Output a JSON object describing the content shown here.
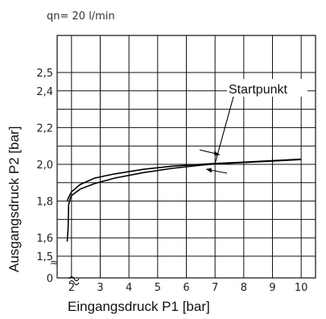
{
  "chart_data": {
    "type": "line",
    "annotation": "qn= 20 l/min",
    "xlabel": "Eingangsdruck P1 [bar]",
    "ylabel": "Ausgangsdruck P2 [bar]",
    "x_ticks": [
      "2",
      "3",
      "4",
      "5",
      "6",
      "7",
      "8",
      "9",
      "10"
    ],
    "y_ticks": [
      {
        "label": "0",
        "value": 0
      },
      {
        "label": "1,5",
        "value": 1.5
      },
      {
        "label": "1,6",
        "value": 1.6
      },
      {
        "label": "1,8",
        "value": 1.8
      },
      {
        "label": "2,0",
        "value": 2.0
      },
      {
        "label": "2,2",
        "value": 2.2
      },
      {
        "label": "2,4",
        "value": 2.4
      },
      {
        "label": "2,5",
        "value": 2.5
      }
    ],
    "xlim": [
      1.5,
      10.5
    ],
    "axis_break": "≈",
    "grid": true,
    "callout_label": "Startpunkt",
    "callout_point": {
      "x": 7.0,
      "y": 2.005
    },
    "series": [
      {
        "x": [
          1.85,
          1.9,
          1.95,
          2.0,
          2.3,
          2.8,
          3.5,
          4.5,
          5.5,
          6.5,
          7.0,
          8.0,
          9.0,
          10.0
        ],
        "y": [
          1.8,
          1.82,
          1.835,
          1.85,
          1.89,
          1.925,
          1.948,
          1.973,
          1.99,
          2.0,
          2.005,
          2.012,
          2.02,
          2.028
        ]
      },
      {
        "x": [
          1.85,
          1.88,
          1.9,
          1.95,
          2.0,
          2.3,
          2.8,
          3.5,
          4.5,
          5.5,
          6.5,
          7.0,
          8.0,
          9.0,
          10.0
        ],
        "y": [
          1.58,
          1.65,
          1.78,
          1.81,
          1.83,
          1.865,
          1.895,
          1.925,
          1.955,
          1.978,
          1.995,
          2.002,
          2.01,
          2.018,
          2.026
        ]
      }
    ]
  }
}
